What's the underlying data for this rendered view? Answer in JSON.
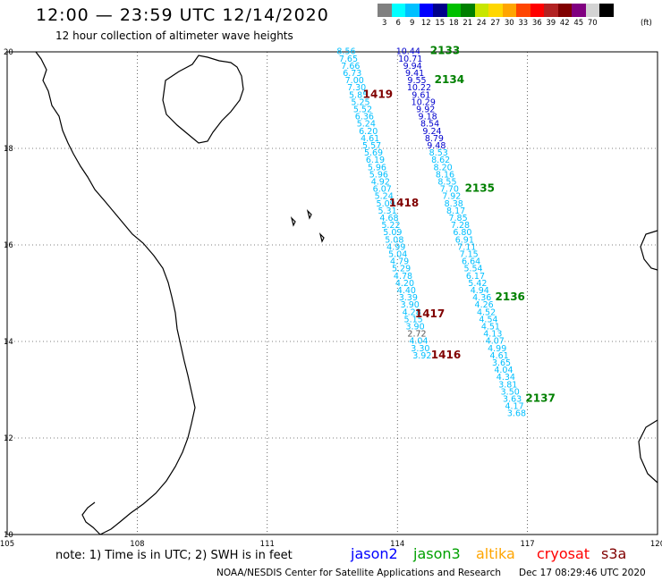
{
  "header": {
    "title": "12:00 — 23:59 UTC 12/14/2020",
    "subtitle": "12 hour collection of altimeter wave heights"
  },
  "legend": {
    "colors": [
      "#808080",
      "#00ffff",
      "#00c0ff",
      "#0000ff",
      "#00008b",
      "#00c000",
      "#008000",
      "#c8e600",
      "#ffd700",
      "#ffa500",
      "#ff4500",
      "#ff0000",
      "#b22222",
      "#800000",
      "#800080",
      "#d3d3d3",
      "#000000"
    ],
    "labels": [
      "3",
      "6",
      "9",
      "12",
      "15",
      "18",
      "21",
      "24",
      "27",
      "30",
      "33",
      "36",
      "39",
      "42",
      "45",
      "70"
    ],
    "unit": "(ft)"
  },
  "axes": {
    "x_ticks": [
      "105",
      "108",
      "111",
      "114",
      "117",
      "120"
    ],
    "y_ticks": [
      "20",
      "18",
      "16",
      "14",
      "12",
      "10"
    ]
  },
  "tracks": [
    {
      "id": "cyan-west",
      "points": [
        {
          "lon": 112.82,
          "lat": 19.95,
          "label": "8.56",
          "color": "#00bfff"
        },
        {
          "lon": 112.87,
          "lat": 19.8,
          "label": "7.65",
          "color": "#00bfff"
        },
        {
          "lon": 112.92,
          "lat": 19.65,
          "label": "7.66",
          "color": "#00bfff"
        },
        {
          "lon": 112.96,
          "lat": 19.5,
          "label": "6.73",
          "color": "#00bfff"
        },
        {
          "lon": 113.01,
          "lat": 19.35,
          "label": "7.00",
          "color": "#00bfff"
        },
        {
          "lon": 113.06,
          "lat": 19.2,
          "label": "7.30",
          "color": "#00bfff"
        },
        {
          "lon": 113.1,
          "lat": 19.05,
          "label": "5.85",
          "color": "#00bfff"
        },
        {
          "lon": 113.15,
          "lat": 18.9,
          "label": "5.25",
          "color": "#00bfff"
        },
        {
          "lon": 113.2,
          "lat": 18.75,
          "label": "5.52",
          "color": "#00bfff"
        },
        {
          "lon": 113.24,
          "lat": 18.6,
          "label": "6.36",
          "color": "#00bfff"
        },
        {
          "lon": 113.28,
          "lat": 18.45,
          "label": "5.24",
          "color": "#00bfff"
        },
        {
          "lon": 113.33,
          "lat": 18.3,
          "label": "6.20",
          "color": "#00bfff"
        },
        {
          "lon": 113.37,
          "lat": 18.15,
          "label": "4.61",
          "color": "#00bfff"
        },
        {
          "lon": 113.41,
          "lat": 18.0,
          "label": "5.57",
          "color": "#00bfff"
        },
        {
          "lon": 113.45,
          "lat": 17.85,
          "label": "5.69",
          "color": "#00bfff"
        },
        {
          "lon": 113.49,
          "lat": 17.7,
          "label": "6.19",
          "color": "#00bfff"
        },
        {
          "lon": 113.53,
          "lat": 17.55,
          "label": "5.96",
          "color": "#00bfff"
        },
        {
          "lon": 113.57,
          "lat": 17.4,
          "label": "5.96",
          "color": "#00bfff"
        },
        {
          "lon": 113.61,
          "lat": 17.25,
          "label": "4.92",
          "color": "#00bfff"
        },
        {
          "lon": 113.65,
          "lat": 17.1,
          "label": "6.07",
          "color": "#00bfff"
        },
        {
          "lon": 113.69,
          "lat": 16.95,
          "label": "5.24",
          "color": "#00bfff"
        },
        {
          "lon": 113.73,
          "lat": 16.8,
          "label": "5.09",
          "color": "#00bfff"
        },
        {
          "lon": 113.77,
          "lat": 16.65,
          "label": "5.31",
          "color": "#00bfff"
        },
        {
          "lon": 113.81,
          "lat": 16.5,
          "label": "4.68",
          "color": "#00bfff"
        },
        {
          "lon": 113.85,
          "lat": 16.35,
          "label": "5.22",
          "color": "#00bfff"
        },
        {
          "lon": 113.89,
          "lat": 16.2,
          "label": "5.09",
          "color": "#00bfff"
        },
        {
          "lon": 113.93,
          "lat": 16.05,
          "label": "5.08",
          "color": "#00bfff"
        },
        {
          "lon": 113.97,
          "lat": 15.9,
          "label": "4.99",
          "color": "#00bfff"
        },
        {
          "lon": 114.01,
          "lat": 15.75,
          "label": "5.04",
          "color": "#00bfff"
        },
        {
          "lon": 114.05,
          "lat": 15.6,
          "label": "4.79",
          "color": "#00bfff"
        },
        {
          "lon": 114.09,
          "lat": 15.45,
          "label": "5.29",
          "color": "#00bfff"
        },
        {
          "lon": 114.13,
          "lat": 15.3,
          "label": "4.78",
          "color": "#00bfff"
        },
        {
          "lon": 114.17,
          "lat": 15.15,
          "label": "4.20",
          "color": "#00bfff"
        },
        {
          "lon": 114.21,
          "lat": 15.0,
          "label": "4.40",
          "color": "#00bfff"
        },
        {
          "lon": 114.25,
          "lat": 14.85,
          "label": "3.39",
          "color": "#00bfff"
        },
        {
          "lon": 114.29,
          "lat": 14.7,
          "label": "3.90",
          "color": "#00bfff"
        },
        {
          "lon": 114.33,
          "lat": 14.55,
          "label": "4.28",
          "color": "#00bfff"
        },
        {
          "lon": 114.37,
          "lat": 14.4,
          "label": "5.15",
          "color": "#00bfff"
        },
        {
          "lon": 114.41,
          "lat": 14.25,
          "label": "3.90",
          "color": "#00bfff"
        },
        {
          "lon": 114.45,
          "lat": 14.1,
          "label": "2.72",
          "color": "#555555"
        },
        {
          "lon": 114.49,
          "lat": 13.95,
          "label": "4.04",
          "color": "#00bfff"
        },
        {
          "lon": 114.53,
          "lat": 13.8,
          "label": "3.30",
          "color": "#00bfff"
        },
        {
          "lon": 114.57,
          "lat": 13.65,
          "label": "3.92",
          "color": "#00bfff"
        }
      ],
      "annotations": [
        {
          "lon": 113.55,
          "lat": 19.05,
          "text": "1419",
          "color": "#800000"
        },
        {
          "lon": 114.15,
          "lat": 16.8,
          "text": "1418",
          "color": "#800000"
        },
        {
          "lon": 114.75,
          "lat": 14.5,
          "text": "1417",
          "color": "#800000"
        },
        {
          "lon": 115.12,
          "lat": 13.65,
          "text": "1416",
          "color": "#800000"
        }
      ]
    },
    {
      "id": "blue-east",
      "points": [
        {
          "lon": 114.25,
          "lat": 19.95,
          "label": "10.44",
          "color": "#0000cd"
        },
        {
          "lon": 114.3,
          "lat": 19.8,
          "label": "10.71",
          "color": "#0000cd"
        },
        {
          "lon": 114.35,
          "lat": 19.65,
          "label": "9.94",
          "color": "#0000cd"
        },
        {
          "lon": 114.4,
          "lat": 19.5,
          "label": "9.41",
          "color": "#0000cd"
        },
        {
          "lon": 114.45,
          "lat": 19.35,
          "label": "9.55",
          "color": "#0000cd"
        },
        {
          "lon": 114.5,
          "lat": 19.2,
          "label": "10.22",
          "color": "#0000cd"
        },
        {
          "lon": 114.55,
          "lat": 19.05,
          "label": "9.61",
          "color": "#0000cd"
        },
        {
          "lon": 114.6,
          "lat": 18.9,
          "label": "10.29",
          "color": "#0000cd"
        },
        {
          "lon": 114.65,
          "lat": 18.75,
          "label": "9.92",
          "color": "#0000cd"
        },
        {
          "lon": 114.7,
          "lat": 18.6,
          "label": "9.18",
          "color": "#0000cd"
        },
        {
          "lon": 114.75,
          "lat": 18.45,
          "label": "8.54",
          "color": "#0000cd"
        },
        {
          "lon": 114.8,
          "lat": 18.3,
          "label": "9.24",
          "color": "#0000cd"
        },
        {
          "lon": 114.85,
          "lat": 18.15,
          "label": "8.79",
          "color": "#0000cd"
        },
        {
          "lon": 114.9,
          "lat": 18.0,
          "label": "9.48",
          "color": "#0000cd"
        },
        {
          "lon": 114.95,
          "lat": 17.85,
          "label": "8.53",
          "color": "#00bfff"
        },
        {
          "lon": 115.0,
          "lat": 17.7,
          "label": "8.62",
          "color": "#00bfff"
        },
        {
          "lon": 115.05,
          "lat": 17.55,
          "label": "8.20",
          "color": "#00bfff"
        },
        {
          "lon": 115.1,
          "lat": 17.4,
          "label": "8.16",
          "color": "#00bfff"
        },
        {
          "lon": 115.15,
          "lat": 17.25,
          "label": "8.55",
          "color": "#00bfff"
        },
        {
          "lon": 115.2,
          "lat": 17.1,
          "label": "7.70",
          "color": "#00bfff"
        },
        {
          "lon": 115.25,
          "lat": 16.95,
          "label": "7.92",
          "color": "#00bfff"
        },
        {
          "lon": 115.3,
          "lat": 16.8,
          "label": "8.38",
          "color": "#00bfff"
        },
        {
          "lon": 115.35,
          "lat": 16.65,
          "label": "8.17",
          "color": "#00bfff"
        },
        {
          "lon": 115.4,
          "lat": 16.5,
          "label": "7.85",
          "color": "#00bfff"
        },
        {
          "lon": 115.45,
          "lat": 16.35,
          "label": "7.28",
          "color": "#00bfff"
        },
        {
          "lon": 115.5,
          "lat": 16.2,
          "label": "6.80",
          "color": "#00bfff"
        },
        {
          "lon": 115.55,
          "lat": 16.05,
          "label": "6.91",
          "color": "#00bfff"
        },
        {
          "lon": 115.6,
          "lat": 15.9,
          "label": "7.11",
          "color": "#00bfff"
        },
        {
          "lon": 115.65,
          "lat": 15.75,
          "label": "7.15",
          "color": "#00bfff"
        },
        {
          "lon": 115.7,
          "lat": 15.6,
          "label": "6.64",
          "color": "#00bfff"
        },
        {
          "lon": 115.75,
          "lat": 15.45,
          "label": "5.54",
          "color": "#00bfff"
        },
        {
          "lon": 115.8,
          "lat": 15.3,
          "label": "6.17",
          "color": "#00bfff"
        },
        {
          "lon": 115.85,
          "lat": 15.15,
          "label": "5.42",
          "color": "#00bfff"
        },
        {
          "lon": 115.9,
          "lat": 15.0,
          "label": "4.94",
          "color": "#00bfff"
        },
        {
          "lon": 115.95,
          "lat": 14.85,
          "label": "4.36",
          "color": "#00bfff"
        },
        {
          "lon": 116.0,
          "lat": 14.7,
          "label": "4.26",
          "color": "#00bfff"
        },
        {
          "lon": 116.05,
          "lat": 14.55,
          "label": "4.52",
          "color": "#00bfff"
        },
        {
          "lon": 116.1,
          "lat": 14.4,
          "label": "4.54",
          "color": "#00bfff"
        },
        {
          "lon": 116.15,
          "lat": 14.25,
          "label": "4.51",
          "color": "#00bfff"
        },
        {
          "lon": 116.2,
          "lat": 14.1,
          "label": "4.13",
          "color": "#00bfff"
        },
        {
          "lon": 116.25,
          "lat": 13.95,
          "label": "4.07",
          "color": "#00bfff"
        },
        {
          "lon": 116.3,
          "lat": 13.8,
          "label": "4.99",
          "color": "#00bfff"
        },
        {
          "lon": 116.35,
          "lat": 13.65,
          "label": "4.61",
          "color": "#00bfff"
        },
        {
          "lon": 116.4,
          "lat": 13.5,
          "label": "3.65",
          "color": "#00bfff"
        },
        {
          "lon": 116.45,
          "lat": 13.35,
          "label": "4.04",
          "color": "#00bfff"
        },
        {
          "lon": 116.5,
          "lat": 13.2,
          "label": "4.34",
          "color": "#00bfff"
        },
        {
          "lon": 116.55,
          "lat": 13.05,
          "label": "3.81",
          "color": "#00bfff"
        },
        {
          "lon": 116.6,
          "lat": 12.9,
          "label": "3.50",
          "color": "#00bfff"
        },
        {
          "lon": 116.65,
          "lat": 12.75,
          "label": "3.63",
          "color": "#00bfff"
        },
        {
          "lon": 116.7,
          "lat": 12.6,
          "label": "4.17",
          "color": "#00bfff"
        },
        {
          "lon": 116.75,
          "lat": 12.45,
          "label": "3.68",
          "color": "#00bfff"
        }
      ],
      "annotations": [
        {
          "lon": 115.1,
          "lat": 19.95,
          "text": "2133",
          "color": "#008000"
        },
        {
          "lon": 115.2,
          "lat": 19.35,
          "text": "2134",
          "color": "#008000"
        },
        {
          "lon": 115.9,
          "lat": 17.1,
          "text": "2135",
          "color": "#008000"
        },
        {
          "lon": 116.6,
          "lat": 14.85,
          "text": "2136",
          "color": "#008000"
        },
        {
          "lon": 117.3,
          "lat": 12.75,
          "text": "2137",
          "color": "#008000"
        }
      ]
    }
  ],
  "footer": {
    "note": "note: 1) Time is in UTC; 2) SWH is in feet",
    "missions": [
      {
        "name": "jason2",
        "color": "#0000ff"
      },
      {
        "name": "jason3",
        "color": "#00a000"
      },
      {
        "name": "altika",
        "color": "#ffa500"
      },
      {
        "name": "cryosat",
        "color": "#ff0000"
      },
      {
        "name": "s3a",
        "color": "#800000"
      }
    ],
    "credit": "NOAA/NESDIS Center for Satellite Applications and Research",
    "timestamp": "Dec 17 08:29:46 UTC 2020"
  }
}
